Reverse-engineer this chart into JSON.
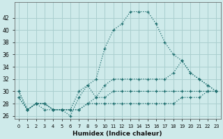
{
  "xlabel": "Humidex (Indice chaleur)",
  "bg_color": "#ceeaea",
  "grid_color": "#aacfcf",
  "line_color": "#1a6b6b",
  "x": [
    0,
    1,
    2,
    3,
    4,
    5,
    6,
    7,
    8,
    9,
    10,
    11,
    12,
    13,
    14,
    15,
    16,
    17,
    18,
    19,
    20,
    21,
    22,
    23
  ],
  "series1": [
    30,
    27,
    28,
    27,
    27,
    27,
    26,
    29,
    31,
    32,
    37,
    40,
    41,
    43,
    43,
    43,
    41,
    38,
    36,
    35,
    33,
    32,
    31,
    30
  ],
  "series2": [
    30,
    27,
    28,
    28,
    27,
    27,
    27,
    30,
    31,
    29,
    31,
    32,
    32,
    32,
    32,
    32,
    32,
    32,
    33,
    35,
    33,
    32,
    31,
    30
  ],
  "series3": [
    29,
    27,
    28,
    28,
    27,
    27,
    27,
    27,
    28,
    29,
    29,
    30,
    30,
    30,
    30,
    30,
    30,
    30,
    30,
    30,
    30,
    30,
    30,
    30
  ],
  "series4": [
    29,
    27,
    28,
    28,
    27,
    27,
    27,
    27,
    28,
    28,
    28,
    28,
    28,
    28,
    28,
    28,
    28,
    28,
    28,
    29,
    29,
    29,
    30,
    30
  ],
  "xlim": [
    -0.5,
    23.5
  ],
  "ylim": [
    25.5,
    44.5
  ],
  "yticks": [
    26,
    28,
    30,
    32,
    34,
    36,
    38,
    40,
    42
  ],
  "xtick_labels": [
    "0",
    "1",
    "2",
    "3",
    "4",
    "5",
    "6",
    "7",
    "8",
    "9",
    "10",
    "11",
    "12",
    "13",
    "14",
    "15",
    "16",
    "17",
    "18",
    "19",
    "20",
    "21",
    "22",
    "23"
  ]
}
